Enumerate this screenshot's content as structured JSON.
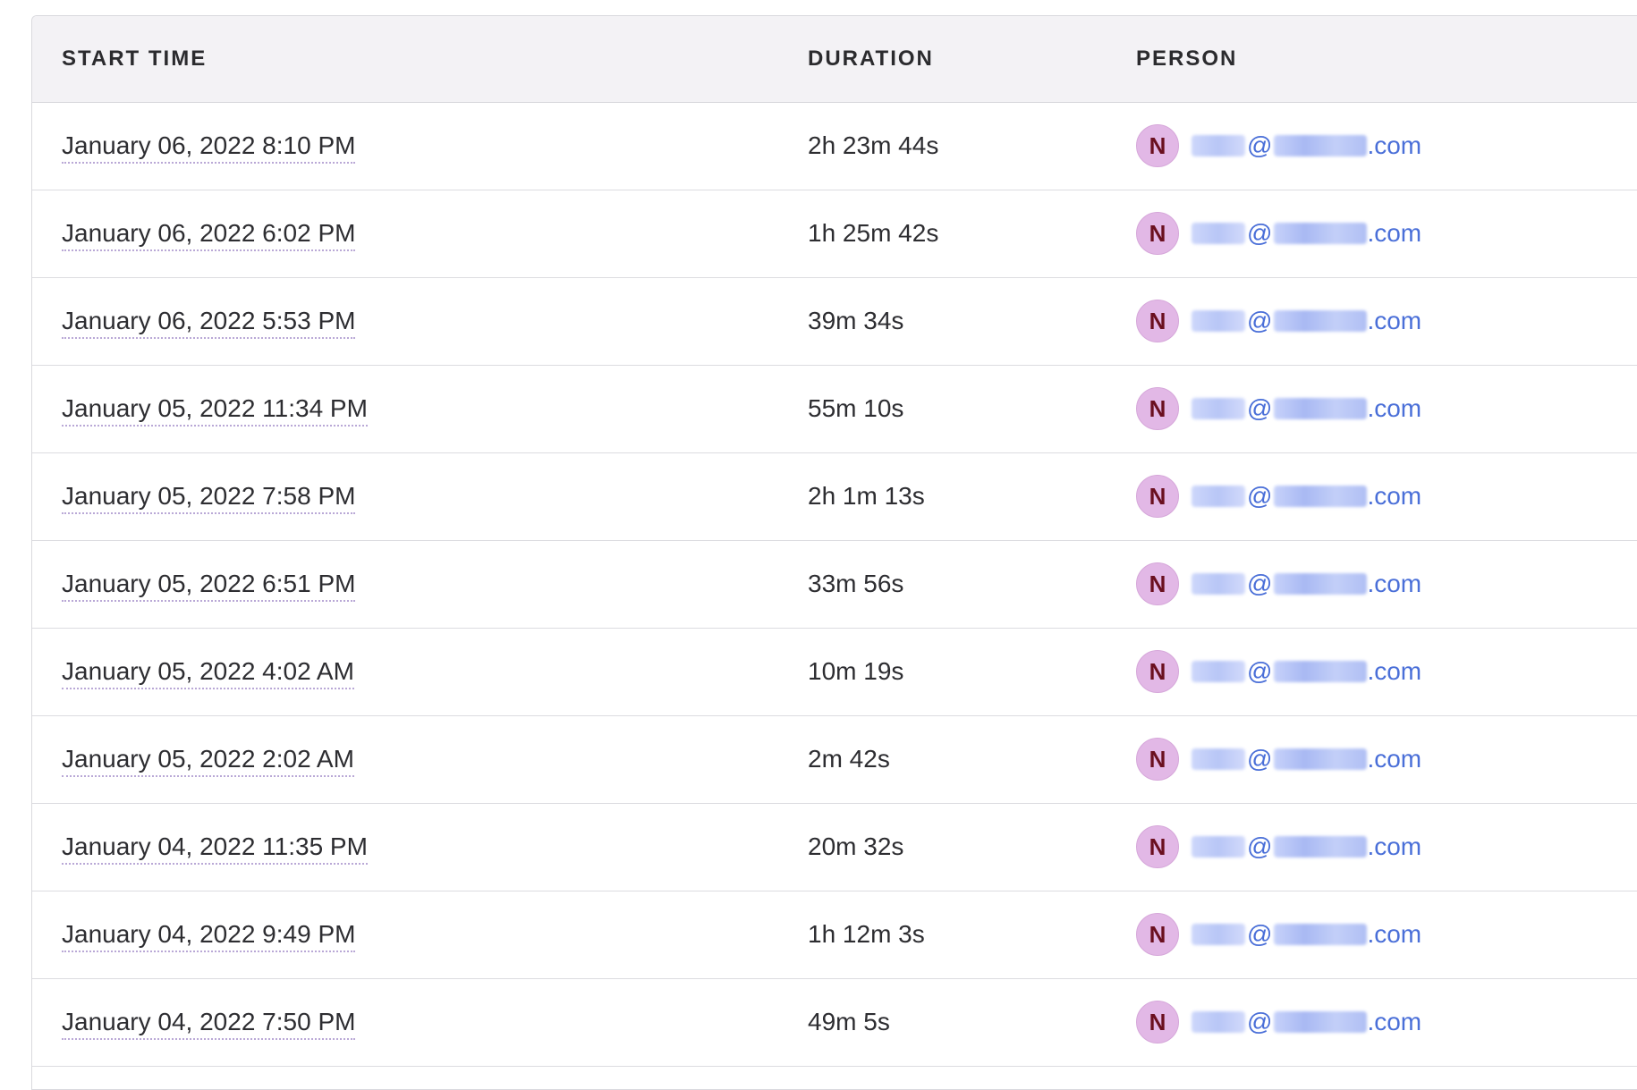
{
  "table": {
    "headers": {
      "start_time": "START TIME",
      "duration": "DURATION",
      "person": "PERSON"
    },
    "rows": [
      {
        "start_time": "January 06, 2022 8:10 PM",
        "duration": "2h 23m 44s",
        "avatar_initial": "N",
        "email_at": "@",
        "email_tld": ".com"
      },
      {
        "start_time": "January 06, 2022 6:02 PM",
        "duration": "1h 25m 42s",
        "avatar_initial": "N",
        "email_at": "@",
        "email_tld": ".com"
      },
      {
        "start_time": "January 06, 2022 5:53 PM",
        "duration": "39m 34s",
        "avatar_initial": "N",
        "email_at": "@",
        "email_tld": ".com"
      },
      {
        "start_time": "January 05, 2022 11:34 PM",
        "duration": "55m 10s",
        "avatar_initial": "N",
        "email_at": "@",
        "email_tld": ".com"
      },
      {
        "start_time": "January 05, 2022 7:58 PM",
        "duration": "2h 1m 13s",
        "avatar_initial": "N",
        "email_at": "@",
        "email_tld": ".com"
      },
      {
        "start_time": "January 05, 2022 6:51 PM",
        "duration": "33m 56s",
        "avatar_initial": "N",
        "email_at": "@",
        "email_tld": ".com"
      },
      {
        "start_time": "January 05, 2022 4:02 AM",
        "duration": "10m 19s",
        "avatar_initial": "N",
        "email_at": "@",
        "email_tld": ".com"
      },
      {
        "start_time": "January 05, 2022 2:02 AM",
        "duration": "2m 42s",
        "avatar_initial": "N",
        "email_at": "@",
        "email_tld": ".com"
      },
      {
        "start_time": "January 04, 2022 11:35 PM",
        "duration": "20m 32s",
        "avatar_initial": "N",
        "email_at": "@",
        "email_tld": ".com"
      },
      {
        "start_time": "January 04, 2022 9:49 PM",
        "duration": "1h 12m 3s",
        "avatar_initial": "N",
        "email_at": "@",
        "email_tld": ".com"
      },
      {
        "start_time": "January 04, 2022 7:50 PM",
        "duration": "49m 5s",
        "avatar_initial": "N",
        "email_at": "@",
        "email_tld": ".com"
      }
    ]
  },
  "colors": {
    "header_bg": "#f3f2f5",
    "link": "#4a6fd8",
    "avatar_bg": "#e2b8e6",
    "avatar_text": "#6a0f1f"
  }
}
